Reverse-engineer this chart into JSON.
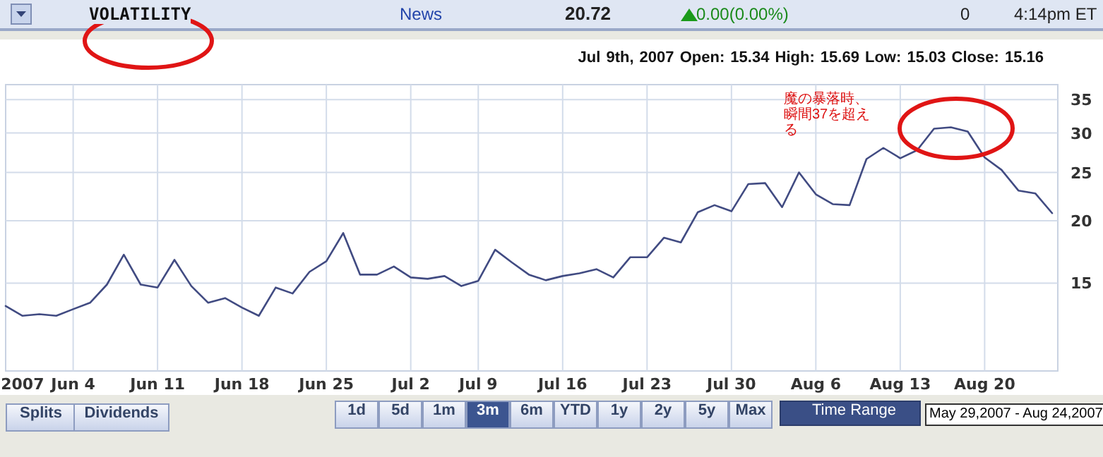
{
  "chart_data": {
    "type": "line",
    "title": "VOLATILITY",
    "categories": [
      null,
      "2007",
      null,
      null,
      "Jun 4",
      null,
      null,
      null,
      null,
      "Jun 11",
      null,
      null,
      null,
      null,
      "Jun 18",
      null,
      null,
      null,
      null,
      "Jun 25",
      null,
      null,
      null,
      null,
      "Jul 2",
      null,
      null,
      null,
      "Jul 9",
      null,
      null,
      null,
      null,
      "Jul 16",
      null,
      null,
      null,
      null,
      "Jul 23",
      null,
      null,
      null,
      null,
      "Jul 30",
      null,
      null,
      null,
      null,
      "Aug 6",
      null,
      null,
      null,
      null,
      "Aug 13",
      null,
      null,
      null,
      null,
      "Aug 20",
      null,
      null,
      null,
      null
    ],
    "series": [
      {
        "color": "#414b82",
        "values": [
          13.5,
          12.9,
          13.0,
          12.9,
          13.3,
          13.7,
          14.9,
          17.1,
          14.9,
          14.7,
          16.7,
          14.8,
          13.7,
          14.0,
          13.4,
          12.9,
          14.7,
          14.3,
          15.8,
          16.6,
          18.9,
          15.6,
          15.6,
          16.2,
          15.4,
          15.3,
          15.5,
          14.8,
          15.16,
          17.5,
          16.5,
          15.6,
          15.2,
          15.5,
          15.7,
          16.0,
          15.4,
          16.9,
          16.9,
          18.5,
          18.1,
          20.8,
          21.5,
          20.9,
          23.7,
          23.8,
          21.3,
          25.0,
          22.6,
          21.6,
          21.5,
          26.6,
          28.0,
          26.7,
          27.7,
          30.6,
          30.8,
          30.2,
          26.8,
          25.3,
          23.0,
          22.7,
          20.72
        ]
      }
    ],
    "log": "y",
    "ylim": [
      10,
      37.5
    ],
    "yticks": [
      15,
      20,
      25,
      30,
      35
    ],
    "grid": true,
    "annotations": [
      "News",
      "20.72",
      "0.00(0.00%)",
      "0",
      "4:14pm ET",
      "Jul 9th, 2007  Open: 15.34  High: 15.69  Low: 15.03  Close: 15.16",
      "魔の暴落時、瞬間37を超える",
      "Splits",
      "Dividends",
      "1d",
      "5d",
      "1m",
      "3m",
      "6m",
      "YTD",
      "1y",
      "2y",
      "5y",
      "Max",
      "Time Range",
      "May 29,2007 - Aug 24,2007"
    ]
  }
}
